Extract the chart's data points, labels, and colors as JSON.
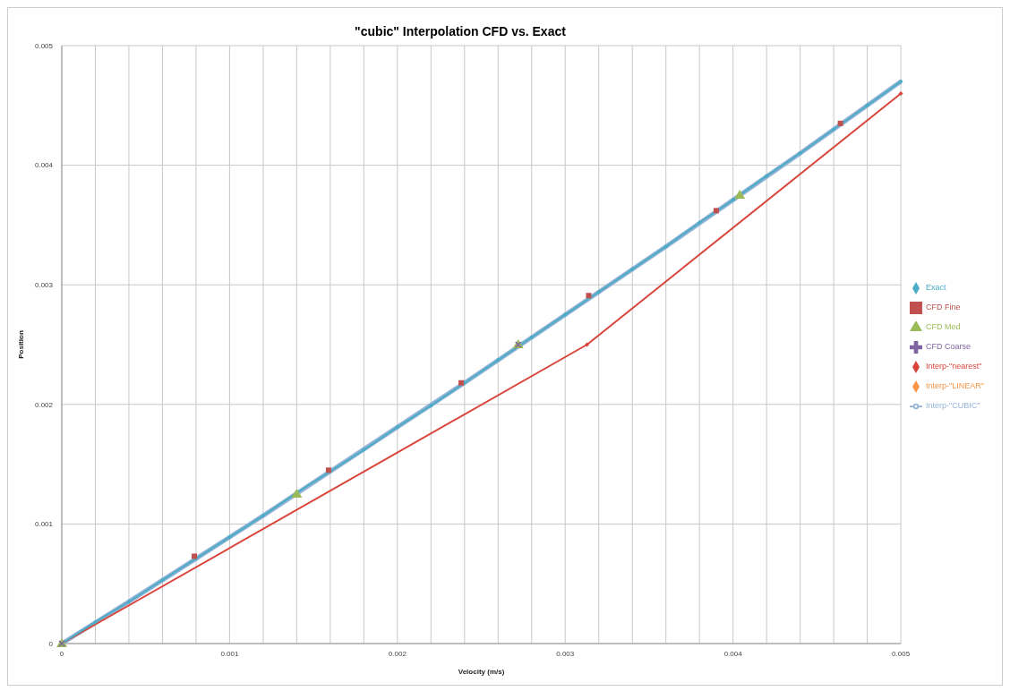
{
  "chart_data": {
    "type": "line",
    "title": "\"cubic\" Interpolation CFD vs. Exact",
    "xlabel": "Velocity (m/s)",
    "ylabel": "Position",
    "xlim": [
      0,
      0.005
    ],
    "ylim": [
      0,
      0.005
    ],
    "xticks": [
      0,
      {
        "value": 0.0002,
        "label": null
      },
      {
        "value": 0.0004,
        "label": null
      },
      {
        "value": 0.0006,
        "label": null
      },
      {
        "value": 0.0008,
        "label": null
      },
      0.001,
      {
        "value": 0.0012,
        "label": null
      },
      {
        "value": 0.0014,
        "label": null
      },
      {
        "value": 0.0016,
        "label": null
      },
      {
        "value": 0.0018,
        "label": null
      },
      0.002,
      {
        "value": 0.0022,
        "label": null
      },
      {
        "value": 0.0024,
        "label": null
      },
      {
        "value": 0.0026,
        "label": null
      },
      {
        "value": 0.0028,
        "label": null
      },
      0.003,
      {
        "value": 0.0032,
        "label": null
      },
      {
        "value": 0.0034,
        "label": null
      },
      {
        "value": 0.0036,
        "label": null
      },
      {
        "value": 0.0038,
        "label": null
      },
      0.004,
      {
        "value": 0.0042,
        "label": null
      },
      {
        "value": 0.0044,
        "label": null
      },
      {
        "value": 0.0046,
        "label": null
      },
      {
        "value": 0.0048,
        "label": null
      },
      0.005
    ],
    "yticks": [
      0,
      0.001,
      0.002,
      0.003,
      0.004,
      0.005
    ],
    "grid": true,
    "legend": "right",
    "series": [
      {
        "name": "Exact",
        "color": "#4bacc6",
        "marker": "diamond",
        "x": [
          0,
          0.0002,
          0.0004,
          0.0006,
          0.0008,
          0.001,
          0.0012,
          0.0014,
          0.0016,
          0.0018,
          0.002,
          0.0022,
          0.0024,
          0.0026,
          0.0028,
          0.003,
          0.0032,
          0.0034,
          0.0036,
          0.0038,
          0.004,
          0.0042,
          0.0044,
          0.0046,
          0.0048,
          0.005
        ],
        "values": [
          0,
          0.00018,
          0.00035,
          0.00053,
          0.00071,
          0.00089,
          0.00107,
          0.00126,
          0.00144,
          0.00162,
          0.00181,
          0.00199,
          0.00218,
          0.00237,
          0.00256,
          0.00275,
          0.00294,
          0.00313,
          0.00332,
          0.00352,
          0.00371,
          0.00391,
          0.0041,
          0.0043,
          0.0045,
          0.0047
        ]
      },
      {
        "name": "CFD Fine",
        "type": "scatter",
        "color": "#c0504d",
        "marker": "square",
        "x": [
          0.00079,
          0.00159,
          0.00238,
          0.00314,
          0.0039,
          0.00464
        ],
        "values": [
          0.00073,
          0.00145,
          0.00218,
          0.00291,
          0.00362,
          0.00435
        ]
      },
      {
        "name": "CFD Med",
        "type": "scatter",
        "color": "#9bbb59",
        "marker": "triangle",
        "x": [
          0,
          0.0014,
          0.00272,
          0.00404
        ],
        "values": [
          0,
          0.00125,
          0.0025,
          0.00375
        ]
      },
      {
        "name": "CFD Coarse",
        "type": "scatter",
        "color": "#8064a2",
        "marker": "cross",
        "x": [
          0,
          0.00272
        ],
        "values": [
          0,
          0.0025
        ]
      },
      {
        "name": "Interp-\"nearest\"",
        "color": "#d9453b",
        "marker": "diamond",
        "x": [
          0,
          0.00313,
          0.005
        ],
        "values": [
          0,
          0.0025,
          0.0046
        ]
      },
      {
        "name": "Interp-\"LINEAR\"",
        "color": "#f79646",
        "marker": "diamond"
      },
      {
        "name": "Interp-\"CUBIC\"",
        "color": "#95b3d7",
        "marker": "none",
        "x": [
          0,
          0.0004,
          0.0008,
          0.0012,
          0.0016,
          0.002,
          0.0024,
          0.0028,
          0.0032,
          0.0036,
          0.004,
          0.0044,
          0.0048,
          0.005
        ],
        "values": [
          0,
          0.00035,
          0.00071,
          0.00107,
          0.00144,
          0.00181,
          0.00218,
          0.00256,
          0.00294,
          0.00332,
          0.00371,
          0.0041,
          0.0045,
          0.0047
        ]
      }
    ]
  }
}
